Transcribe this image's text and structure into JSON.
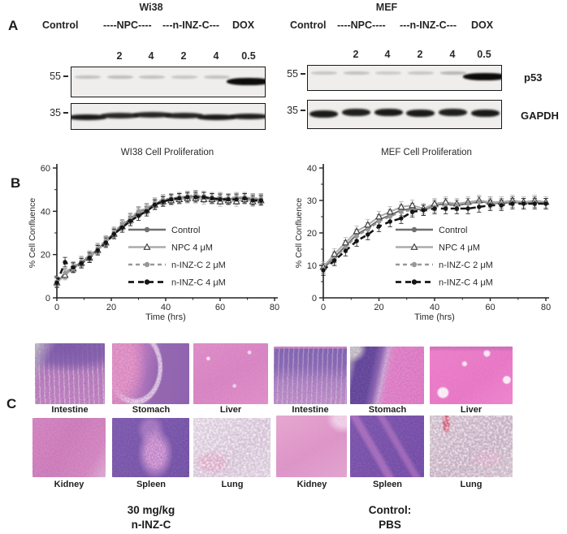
{
  "panels": {
    "A": {
      "label": "A",
      "row_labels": {
        "p53": "p53",
        "gapdh": "GAPDH"
      },
      "groups": [
        {
          "title": "Wi38",
          "treatments": [
            "Control",
            "----NPC----",
            "---n-INZ-C---",
            "DOX"
          ],
          "doses": [
            "2",
            "4",
            "2",
            "4",
            "0.5"
          ],
          "mw_markers": [
            "55",
            "35"
          ],
          "blots": {
            "p53_bands": [
              0.2,
              0.22,
              0.2,
              0.18,
              0.2,
              1
            ],
            "gapdh_bands": [
              1,
              0.75,
              0.8,
              0.8,
              1,
              0.9
            ]
          }
        },
        {
          "title": "MEF",
          "treatments": [
            "Control",
            "----NPC----",
            "---n-INZ-C---",
            "DOX"
          ],
          "doses": [
            "2",
            "4",
            "2",
            "4",
            "0.5"
          ],
          "mw_markers": [
            "55",
            "35"
          ],
          "blots": {
            "p53_bands": [
              0.18,
              0.2,
              0.16,
              0.18,
              0.25,
              1
            ],
            "gapdh_bands": [
              0.95,
              0.9,
              1,
              0.95,
              0.9,
              1
            ]
          }
        }
      ]
    },
    "B": {
      "label": "B"
    },
    "C": {
      "label": "C",
      "groups": [
        {
          "organs": [
            "Intestine",
            "Stomach",
            "Liver",
            "Kidney",
            "Spleen",
            "Lung"
          ],
          "caption": [
            "30 mg/kg",
            "n-INZ-C"
          ]
        },
        {
          "organs": [
            "Intestine",
            "Stomach",
            "Liver",
            "Kidney",
            "Spleen",
            "Lung"
          ],
          "caption": [
            "Control:",
            "PBS"
          ]
        }
      ]
    }
  },
  "chart_data": [
    {
      "type": "line",
      "title": "WI38 Cell Proliferation",
      "xlabel": "Time (hrs)",
      "ylabel": "% Cell Confluence",
      "xlim": [
        0,
        80
      ],
      "ylim": [
        0,
        60
      ],
      "xticks": [
        0,
        20,
        40,
        60,
        80
      ],
      "xminor": [
        10,
        30,
        50,
        70
      ],
      "yticks": [
        0,
        20,
        40,
        60
      ],
      "yminor": [
        10,
        30,
        50
      ],
      "grid": false,
      "legend_position": "inside-right",
      "x": [
        0,
        3,
        6,
        9,
        12,
        15,
        18,
        21,
        24,
        27,
        30,
        33,
        36,
        39,
        42,
        45,
        48,
        51,
        54,
        57,
        60,
        63,
        66,
        69,
        72,
        75
      ],
      "series": [
        {
          "name": "Control",
          "color": "#6e6e6e",
          "dash": null,
          "marker": "circle",
          "err": 2.2,
          "values": [
            7.5,
            11,
            14,
            16.5,
            19,
            22.5,
            26,
            30,
            33.5,
            36.5,
            39.5,
            41,
            43.5,
            45,
            45.5,
            46,
            46.5,
            47,
            46.5,
            46,
            46,
            45.5,
            46,
            46,
            45.5,
            45.5
          ]
        },
        {
          "name": "NPC 4 μM",
          "color": "#ababab",
          "dash": null,
          "marker": "triangle-open",
          "err": 2.2,
          "values": [
            7,
            10.5,
            13.5,
            16,
            18.5,
            22,
            25.5,
            29.5,
            33,
            36,
            39,
            40.5,
            43,
            44.5,
            45,
            45.5,
            46,
            46,
            45.5,
            45.5,
            44.5,
            45,
            44.5,
            45.5,
            44.5,
            45
          ]
        },
        {
          "name": "n-INZ-C 2 μM",
          "color": "#989898",
          "dash": "5 4",
          "marker": "circle",
          "err": 2.2,
          "values": [
            7.5,
            11.5,
            14.5,
            17,
            19.5,
            23,
            26.5,
            30.5,
            34,
            37,
            40,
            41.5,
            44,
            45.5,
            46,
            46.5,
            47,
            47.5,
            47,
            46.5,
            46.5,
            46,
            46.5,
            46.5,
            46,
            46
          ]
        },
        {
          "name": "n-INZ-C 4 μM",
          "color": "#151515",
          "dash": "7 5",
          "marker": "circle",
          "err": 2.2,
          "values": [
            7,
            16.5,
            14,
            16,
            18.5,
            22,
            25.5,
            29.5,
            32.5,
            35.5,
            38,
            40,
            43,
            44.5,
            45.5,
            46,
            46.5,
            46.5,
            46.5,
            46,
            45.5,
            45.5,
            45.5,
            46,
            45,
            45
          ]
        }
      ]
    },
    {
      "type": "line",
      "title": "MEF Cell Proliferation",
      "xlabel": "Time (hrs)",
      "ylabel": "% Cell Confluence",
      "xlim": [
        0,
        80
      ],
      "ylim": [
        0,
        40
      ],
      "xticks": [
        0,
        20,
        40,
        60,
        80
      ],
      "xminor": [
        10,
        30,
        50,
        70
      ],
      "yticks": [
        0,
        10,
        20,
        30,
        40
      ],
      "yminor": [
        5,
        15,
        25,
        35
      ],
      "grid": false,
      "legend_position": "inside-right",
      "x": [
        0,
        4,
        8,
        12,
        16,
        20,
        24,
        28,
        32,
        36,
        40,
        44,
        48,
        52,
        56,
        60,
        64,
        68,
        72,
        76,
        80
      ],
      "series": [
        {
          "name": "Control",
          "color": "#6e6e6e",
          "dash": null,
          "marker": "circle",
          "err": 1.6,
          "values": [
            9,
            12.5,
            16,
            19.5,
            21.5,
            24,
            25.5,
            27,
            27.5,
            27,
            28.5,
            29,
            28.5,
            29,
            29.5,
            29.5,
            29,
            29.5,
            29,
            29.5,
            29
          ]
        },
        {
          "name": "NPC 4 μM",
          "color": "#ababab",
          "dash": null,
          "marker": "triangle-open",
          "err": 1.6,
          "values": [
            9.5,
            13.5,
            17,
            20.5,
            22.5,
            25,
            26.5,
            28,
            28.5,
            27.5,
            29,
            29.5,
            29,
            29.5,
            30,
            29.5,
            29.5,
            30,
            29.5,
            30,
            29.5
          ]
        },
        {
          "name": "n-INZ-C 2 μM",
          "color": "#989898",
          "dash": "5 4",
          "marker": "circle",
          "err": 1.6,
          "values": [
            9,
            12,
            15.5,
            19,
            21,
            23.5,
            25,
            26.5,
            27,
            27,
            28,
            28.5,
            28.5,
            29,
            29.5,
            29,
            29,
            29.5,
            29,
            29.5,
            29
          ]
        },
        {
          "name": "n-INZ-C 4 μM",
          "color": "#151515",
          "dash": "7 5",
          "marker": "circle",
          "err": 1.6,
          "values": [
            8.5,
            11.5,
            14.5,
            17.5,
            19.5,
            22,
            23.5,
            24.5,
            26.5,
            27,
            27.5,
            27.5,
            27.5,
            27.5,
            28,
            28.5,
            28.5,
            29,
            29,
            29,
            29
          ]
        }
      ]
    }
  ],
  "colors": {
    "text": "#2a2a2a",
    "axis": "#222222",
    "blot_bg": "#efeeec",
    "strong_band": "#0c0c0c",
    "he_pink": "#d985c0",
    "he_purple": "#7a58b0"
  }
}
